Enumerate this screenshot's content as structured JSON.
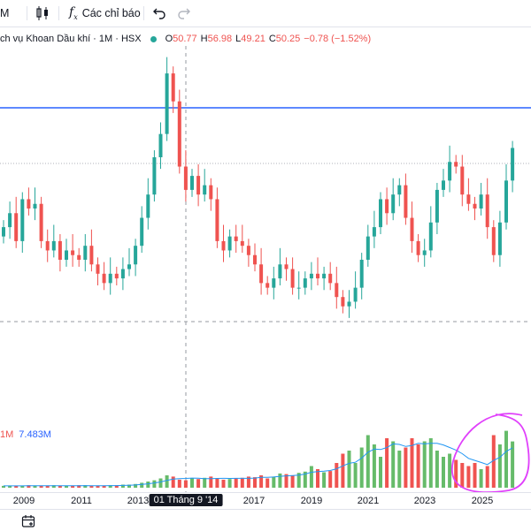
{
  "toolbar": {
    "symbol_fragment": "M",
    "indicators_label": "Các chỉ báo"
  },
  "legend": {
    "title": "ch vụ Khoan Dầu khí · 1M · HSX",
    "o_label": "O",
    "o_value": "50.77",
    "h_label": "H",
    "h_value": "56.98",
    "l_label": "L",
    "l_value": "49.21",
    "c_label": "C",
    "c_value": "50.25",
    "change": "−0.78 (−1.52%)"
  },
  "volume_legend": {
    "value_a": "1M",
    "value_b": "7.483M"
  },
  "xaxis": {
    "labels": [
      "2009",
      "2011",
      "2013",
      "2017",
      "2019",
      "2021",
      "2023",
      "2025"
    ],
    "crosshair_label": "01 Tháng 9 '14"
  },
  "colors": {
    "up": "#26a69a",
    "down": "#ef5350",
    "vol_up": "#66bb6a",
    "vol_down": "#ef5350",
    "hline": "#2962ff",
    "vol_ma": "#2196f3",
    "annotation": "#e040fb"
  },
  "chart_data": {
    "type": "candlestick",
    "description_period": "monthly",
    "last_bar": {
      "open": 50.77,
      "high": 56.98,
      "low": 49.21,
      "close": 50.25
    },
    "series": [
      {
        "name": "price",
        "values": [
          33,
          36,
          30,
          39,
          37,
          38,
          30,
          28,
          30,
          26,
          28,
          27,
          26,
          29,
          25,
          23,
          21,
          23,
          22,
          24,
          25,
          29,
          35,
          40,
          48,
          53,
          66,
          60,
          46,
          41,
          44,
          40,
          42,
          39,
          30,
          28,
          31,
          30,
          29,
          27,
          25,
          21,
          20,
          22,
          25,
          24,
          20,
          20,
          22,
          23,
          22,
          23,
          21,
          18,
          16,
          17,
          20,
          26,
          31,
          33,
          39,
          36,
          40,
          42,
          35,
          30,
          27,
          28,
          34,
          41,
          43,
          47,
          46,
          40,
          38,
          37,
          40,
          33,
          27,
          34,
          43,
          50
        ]
      },
      {
        "name": "volume",
        "values": [
          0.3,
          0.3,
          0.3,
          0.3,
          0.4,
          0.3,
          0.3,
          0.3,
          0.4,
          0.3,
          0.3,
          0.3,
          0.4,
          0.4,
          0.3,
          0.3,
          0.3,
          0.4,
          0.4,
          0.5,
          0.5,
          0.6,
          0.8,
          1.0,
          1.2,
          1.5,
          2.0,
          1.8,
          1.3,
          1.2,
          1.5,
          1.4,
          1.6,
          1.8,
          1.5,
          1.3,
          1.4,
          1.5,
          1.6,
          1.8,
          1.7,
          2.0,
          1.5,
          1.8,
          2.3,
          2.2,
          2.0,
          2.4,
          2.6,
          3.5,
          3.0,
          2.5,
          2.7,
          4.0,
          5.5,
          6.0,
          4.0,
          6.5,
          8.5,
          7.0,
          5.0,
          8.0,
          7.5,
          6.0,
          6.5,
          8.0,
          7.0,
          7.5,
          8.0,
          6.0,
          5.0,
          5.5,
          4.5,
          4.0,
          3.5,
          4.0,
          3.0,
          3.5,
          8.5,
          7.0,
          9.2,
          7.483
        ]
      }
    ]
  }
}
